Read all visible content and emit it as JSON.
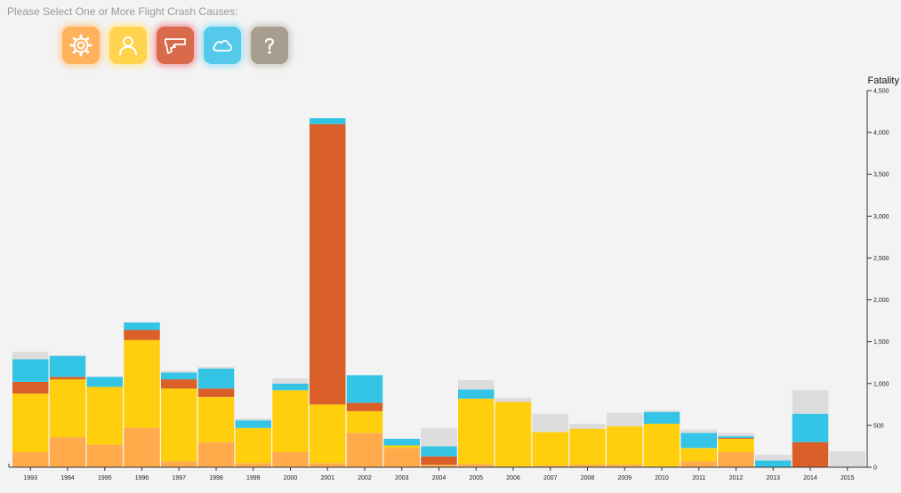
{
  "prompt": "Please Select One or More Flight Crash Causes:",
  "causes": [
    {
      "name": "Mechanical",
      "icon": "gear-icon",
      "color": "#ffb15c",
      "glow": "#ffd2a0"
    },
    {
      "name": "Human Error",
      "icon": "person-icon",
      "color": "#ffd34d",
      "glow": "#ffe9a0"
    },
    {
      "name": "Criminal",
      "icon": "gun-icon",
      "color": "#d96a4a",
      "glow": "#f2a0a8"
    },
    {
      "name": "Weather",
      "icon": "cloud-icon",
      "color": "#55c9ea",
      "glow": "#a6e4f5"
    },
    {
      "name": "Unknown",
      "icon": "question-icon",
      "color": "#a89e90",
      "glow": "#d2ccc4"
    }
  ],
  "chart_data": {
    "type": "bar",
    "stacked": true,
    "ylabel": "Fatality",
    "ylim": [
      0,
      4500
    ],
    "yticks": [
      0,
      500,
      1000,
      1500,
      2000,
      2500,
      3000,
      3500,
      4000,
      4500
    ],
    "ytick_labels": [
      "0",
      "500",
      "1,000",
      "1,500",
      "2,000",
      "2,500",
      "3,000",
      "3,500",
      "4,000",
      "4,500"
    ],
    "categories": [
      "1993",
      "1994",
      "1995",
      "1996",
      "1997",
      "1998",
      "1999",
      "2000",
      "2001",
      "2002",
      "2003",
      "2004",
      "2005",
      "2006",
      "2007",
      "2008",
      "2009",
      "2010",
      "2011",
      "2012",
      "2013",
      "2014",
      "2015"
    ],
    "series": [
      {
        "color": "#ffab4c",
        "values": [
          180,
          360,
          270,
          470,
          70,
          300,
          50,
          180,
          50,
          410,
          230,
          30,
          40,
          10,
          20,
          30,
          30,
          10,
          70,
          180,
          0,
          0,
          0
        ]
      },
      {
        "color": "#ffcf0d",
        "values": [
          700,
          690,
          690,
          1050,
          870,
          540,
          420,
          740,
          700,
          260,
          30,
          0,
          780,
          770,
          400,
          430,
          460,
          510,
          160,
          160,
          0,
          0,
          0
        ]
      },
      {
        "color": "#db5f28",
        "values": [
          140,
          30,
          0,
          120,
          110,
          100,
          0,
          0,
          3350,
          100,
          0,
          100,
          0,
          0,
          0,
          0,
          0,
          0,
          0,
          10,
          0,
          300,
          0
        ]
      },
      {
        "color": "#33c4e6",
        "values": [
          270,
          250,
          120,
          90,
          80,
          240,
          90,
          80,
          70,
          330,
          80,
          120,
          110,
          0,
          0,
          0,
          0,
          140,
          180,
          20,
          80,
          340,
          0
        ]
      },
      {
        "color": "#dcdcdc",
        "values": [
          90,
          10,
          0,
          0,
          20,
          20,
          20,
          60,
          0,
          0,
          0,
          220,
          110,
          50,
          220,
          60,
          160,
          20,
          40,
          40,
          70,
          280,
          190
        ]
      }
    ]
  }
}
